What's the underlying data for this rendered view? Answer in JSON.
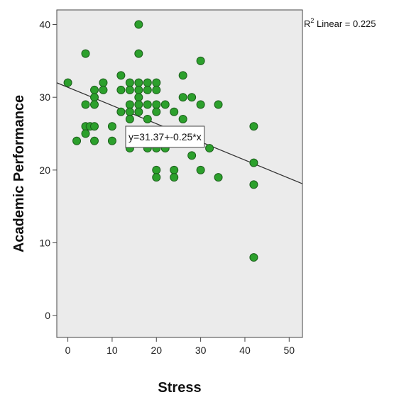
{
  "chart_data": {
    "type": "scatter",
    "xlabel": "Stress",
    "ylabel": "Academic Performance",
    "xlim": [
      -2.5,
      53
    ],
    "ylim": [
      -3,
      42
    ],
    "xticks": [
      0,
      10,
      20,
      30,
      40,
      50
    ],
    "yticks": [
      0,
      10,
      20,
      30,
      40
    ],
    "grid": false,
    "background_color": "#ebebeb",
    "marker_color": "#2ca02c",
    "marker_edge_color": "#1b5e1b",
    "fit_line_color": "#333333",
    "r2_label": {
      "prefix": "R",
      "sup": "2",
      "suffix": " Linear = 0.225"
    },
    "fit_equation": "y=31.37+-0.25*x",
    "fit": {
      "intercept": 31.37,
      "slope": -0.25
    },
    "points": [
      {
        "x": 0,
        "y": 32
      },
      {
        "x": 2,
        "y": 24
      },
      {
        "x": 4,
        "y": 36
      },
      {
        "x": 4,
        "y": 29
      },
      {
        "x": 4,
        "y": 26
      },
      {
        "x": 4,
        "y": 25
      },
      {
        "x": 5,
        "y": 26
      },
      {
        "x": 6,
        "y": 31
      },
      {
        "x": 6,
        "y": 30
      },
      {
        "x": 6,
        "y": 29
      },
      {
        "x": 6,
        "y": 26
      },
      {
        "x": 6,
        "y": 24
      },
      {
        "x": 8,
        "y": 32
      },
      {
        "x": 8,
        "y": 31
      },
      {
        "x": 10,
        "y": 26
      },
      {
        "x": 10,
        "y": 24
      },
      {
        "x": 12,
        "y": 33
      },
      {
        "x": 12,
        "y": 31
      },
      {
        "x": 12,
        "y": 28
      },
      {
        "x": 14,
        "y": 32
      },
      {
        "x": 14,
        "y": 31
      },
      {
        "x": 14,
        "y": 29
      },
      {
        "x": 14,
        "y": 28
      },
      {
        "x": 14,
        "y": 27
      },
      {
        "x": 14,
        "y": 23
      },
      {
        "x": 16,
        "y": 40
      },
      {
        "x": 16,
        "y": 36
      },
      {
        "x": 16,
        "y": 32
      },
      {
        "x": 16,
        "y": 31
      },
      {
        "x": 16,
        "y": 30
      },
      {
        "x": 16,
        "y": 29
      },
      {
        "x": 16,
        "y": 28
      },
      {
        "x": 18,
        "y": 32
      },
      {
        "x": 18,
        "y": 31
      },
      {
        "x": 18,
        "y": 29
      },
      {
        "x": 18,
        "y": 27
      },
      {
        "x": 18,
        "y": 23
      },
      {
        "x": 20,
        "y": 32
      },
      {
        "x": 20,
        "y": 31
      },
      {
        "x": 20,
        "y": 29
      },
      {
        "x": 20,
        "y": 28
      },
      {
        "x": 20,
        "y": 24
      },
      {
        "x": 20,
        "y": 23
      },
      {
        "x": 20,
        "y": 20
      },
      {
        "x": 20,
        "y": 19
      },
      {
        "x": 22,
        "y": 29
      },
      {
        "x": 22,
        "y": 23
      },
      {
        "x": 24,
        "y": 28
      },
      {
        "x": 24,
        "y": 20
      },
      {
        "x": 24,
        "y": 19
      },
      {
        "x": 26,
        "y": 33
      },
      {
        "x": 26,
        "y": 30
      },
      {
        "x": 26,
        "y": 27
      },
      {
        "x": 28,
        "y": 30
      },
      {
        "x": 28,
        "y": 22
      },
      {
        "x": 30,
        "y": 35
      },
      {
        "x": 30,
        "y": 29
      },
      {
        "x": 30,
        "y": 20
      },
      {
        "x": 32,
        "y": 23
      },
      {
        "x": 34,
        "y": 29
      },
      {
        "x": 34,
        "y": 19
      },
      {
        "x": 42,
        "y": 26
      },
      {
        "x": 42,
        "y": 21
      },
      {
        "x": 42,
        "y": 18
      },
      {
        "x": 42,
        "y": 8
      }
    ]
  }
}
